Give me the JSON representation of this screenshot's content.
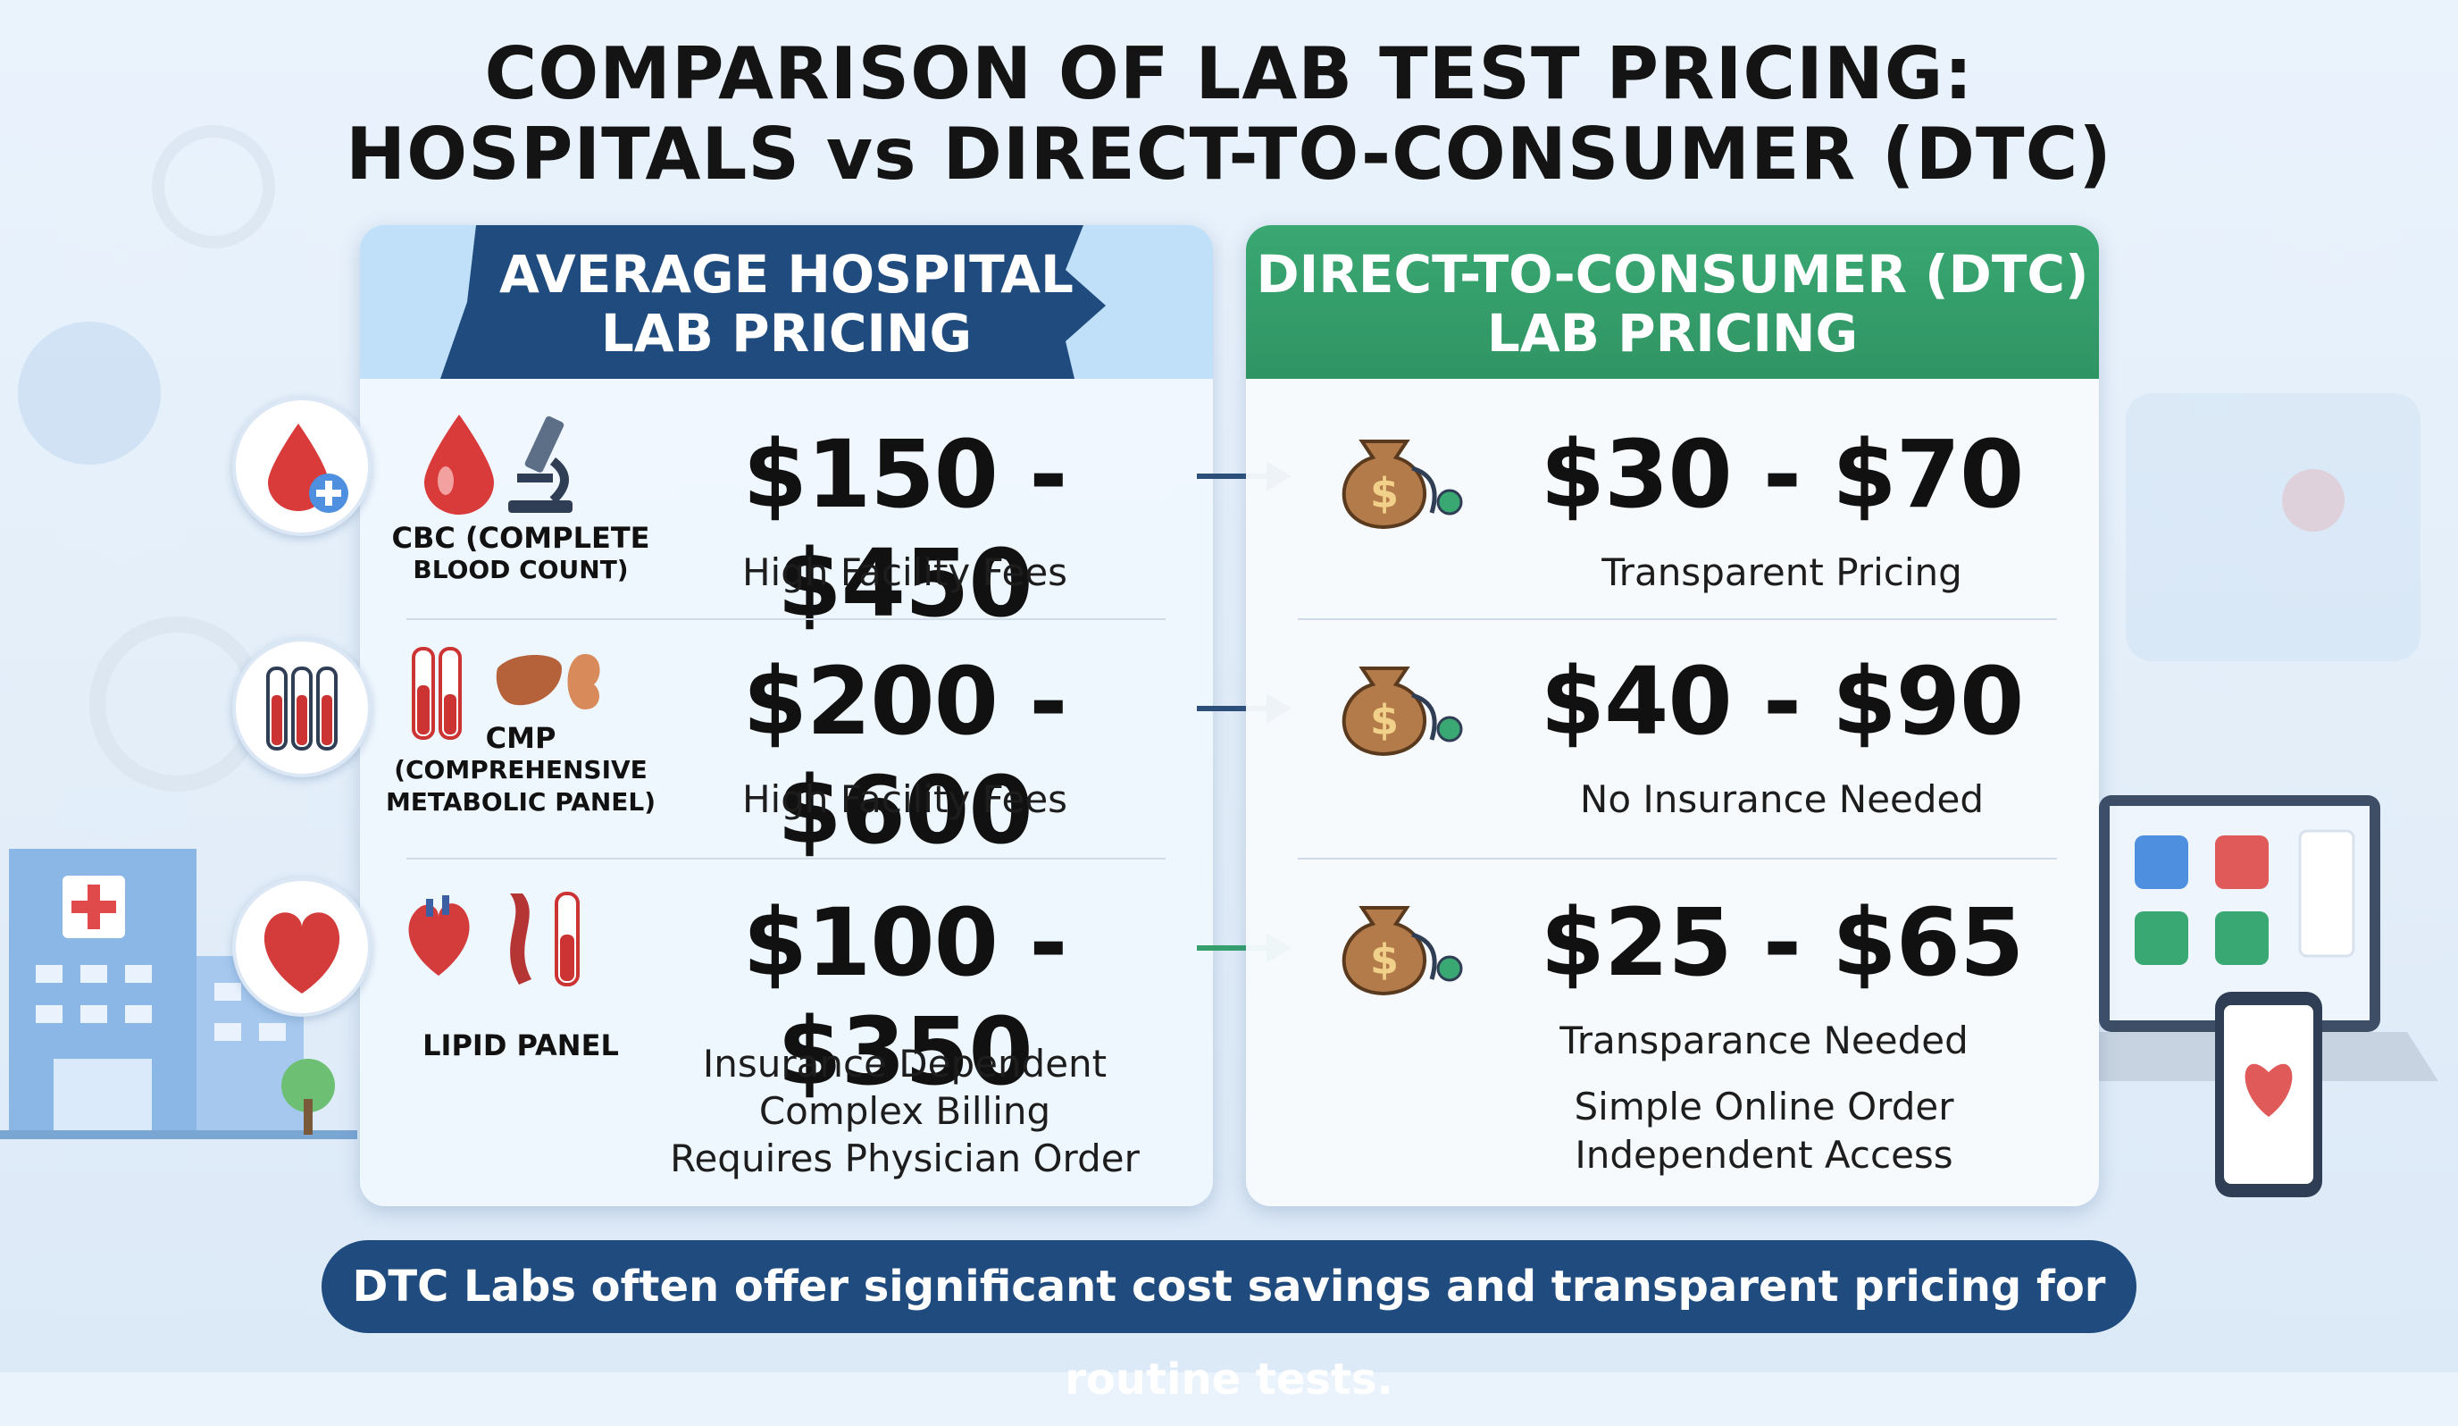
{
  "title": {
    "line1": "COMPARISON OF LAB TEST PRICING:",
    "line2": "HOSPITALS vs DIRECT-TO-CONSUMER (DTC)"
  },
  "hospital_panel": {
    "heading_line1": "AVERAGE HOSPITAL",
    "heading_line2": "LAB PRICING",
    "rows": [
      {
        "test_line1": "CBC (COMPLETE",
        "test_line2": "BLOOD COUNT)",
        "price": "$150 - $450",
        "notes": [
          "High Facility Fees"
        ]
      },
      {
        "test_line1": "CMP",
        "test_line2": "(COMPREHENSIVE",
        "test_line3": "METABOLIC PANEL)",
        "price": "$200 - $600",
        "notes": [
          "High Facility Fees"
        ]
      },
      {
        "test_line1": "LIPID PANEL",
        "price": "$100 - $350",
        "notes": [
          "Insurance Dependent",
          "Complex Billing",
          "Requires Physician Order"
        ]
      }
    ]
  },
  "dtc_panel": {
    "heading_line1": "DIRECT-TO-CONSUMER (DTC)",
    "heading_line2": "LAB PRICING",
    "rows": [
      {
        "price": "$30 - $70",
        "notes": [
          "Transparent Pricing"
        ]
      },
      {
        "price": "$40 - $90",
        "notes": [
          "No Insurance Needed"
        ]
      },
      {
        "price": "$25 - $65",
        "notes": [
          "Transparance Needed",
          "Simple Online Order",
          "Independent Access"
        ]
      }
    ]
  },
  "footer": "DTC Labs often offer significant cost savings and transparent pricing for routine tests.",
  "colors": {
    "hospital_banner": "#1f4b7e",
    "dtc_header": "#35a06d",
    "footer_bg": "#1f4b7e",
    "arrow_blue": "#2c4f7a",
    "arrow_green": "#35a06d"
  },
  "icons": {
    "row1_circle": "blood-drop-plus-icon",
    "row1_a": "blood-drop-icon",
    "row1_b": "microscope-icon",
    "row2_circle": "test-tubes-icon",
    "row2_a": "test-tube-icon",
    "row2_b": "liver-icon",
    "row2_c": "kidney-icon",
    "row3_circle": "heart-icon",
    "row3_a": "heart-icon",
    "row3_b": "artery-icon",
    "row3_c": "test-tube-icon",
    "dtc": "money-bag-stethoscope-icon"
  }
}
